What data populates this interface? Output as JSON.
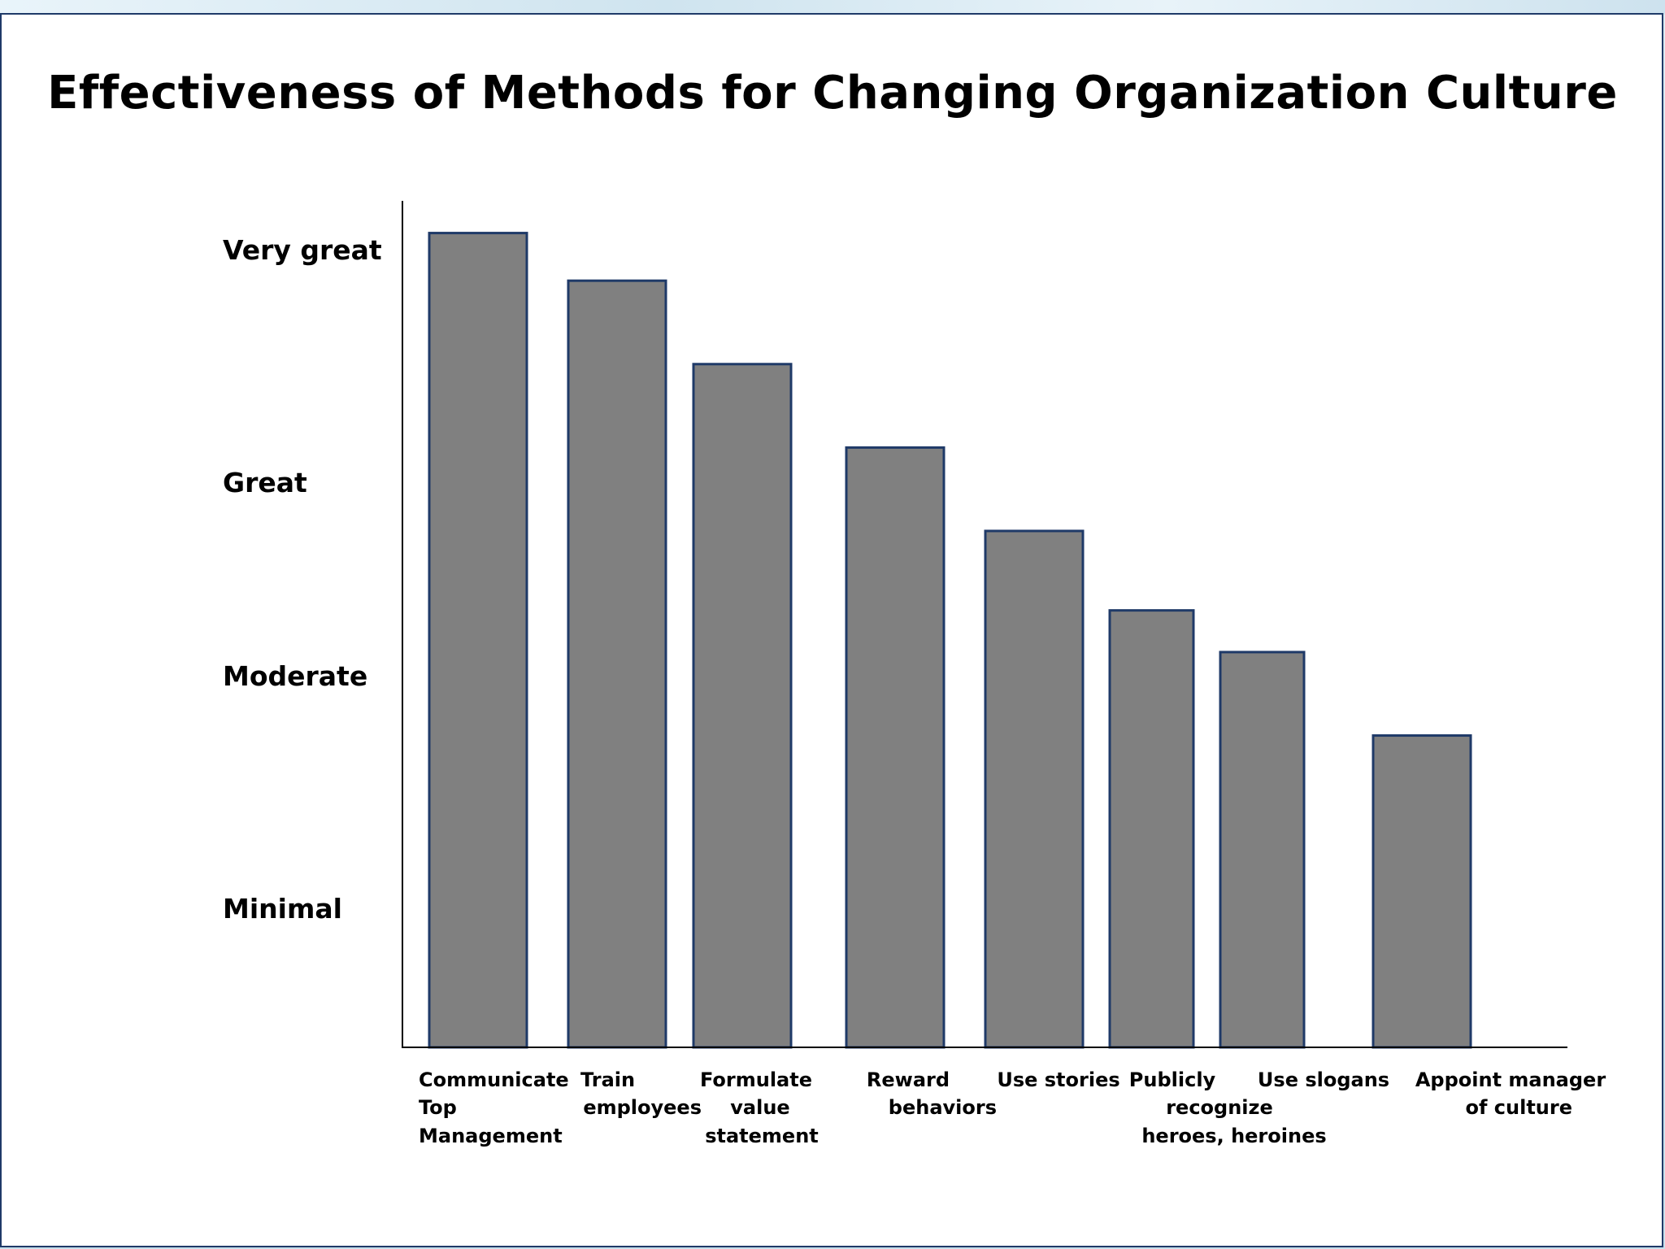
{
  "chart_data": {
    "type": "bar",
    "title": "Effectiveness of Methods for Changing Organization Culture",
    "xlabel": "",
    "ylabel": "",
    "y_tick_labels": [
      "Very great",
      "Great",
      "Moderate",
      "Minimal"
    ],
    "categories": [
      [
        "Communicate",
        "Top",
        "Management"
      ],
      [
        "Train",
        "employees"
      ],
      [
        "Formulate",
        "value",
        "statement"
      ],
      [
        "Reward",
        "behaviors"
      ],
      [
        "Use stories"
      ],
      [
        "Publicly",
        "recognize",
        "heroes, heroines"
      ],
      [
        "Use slogans"
      ],
      [
        "Appoint manager",
        "of culture"
      ]
    ],
    "values": [
      4.1,
      3.86,
      3.44,
      3.02,
      2.6,
      2.2,
      1.99,
      1.57
    ],
    "ylim": [
      0,
      4
    ],
    "grid": false,
    "legend": "none",
    "colors": {
      "bar_fill": "#808080",
      "bar_stroke": "#1f3a68",
      "axis": "#000000"
    }
  }
}
